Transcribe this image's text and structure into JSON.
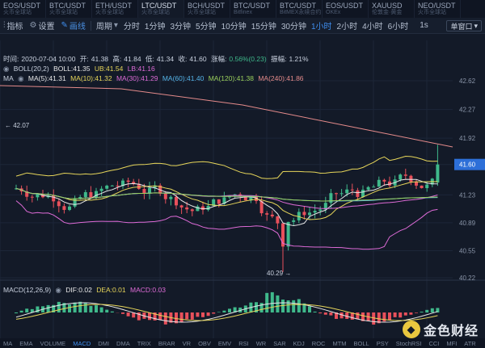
{
  "tabs": [
    {
      "symbol": "EOS/USDT",
      "exchange": "火币全球站",
      "active": false
    },
    {
      "symbol": "BTC/USDT",
      "exchange": "火币全球站",
      "active": false
    },
    {
      "symbol": "ETH/USDT",
      "exchange": "火币全球站",
      "active": false
    },
    {
      "symbol": "LTC/USDT",
      "exchange": "火币全球站",
      "active": true
    },
    {
      "symbol": "BCH/USDT",
      "exchange": "火币全球站",
      "active": false
    },
    {
      "symbol": "BTC/USDT",
      "exchange": "Bitfinex",
      "active": false
    },
    {
      "symbol": "BTC/USDT",
      "exchange": "BitMEX永续合约",
      "active": false
    },
    {
      "symbol": "EOS/USDT",
      "exchange": "OKEx",
      "active": false
    },
    {
      "symbol": "XAUUSD",
      "exchange": "伦敦金·黄金",
      "active": false
    },
    {
      "symbol": "NEO/USDT",
      "exchange": "火币全球站",
      "active": false
    }
  ],
  "toolbar": {
    "indicators_label": "指标",
    "settings_label": "设置",
    "draw_label": "画线",
    "period_label": "周期",
    "timeframes": [
      "分时",
      "1分钟",
      "3分钟",
      "5分钟",
      "10分钟",
      "15分钟",
      "30分钟",
      "1小时",
      "2小时",
      "4小时",
      "6小时"
    ],
    "active_timeframe": "1小时",
    "speed": "1s",
    "window_label": "单窗口"
  },
  "info": {
    "time_label": "时间:",
    "time": "2020-07-04 10:00",
    "open_label": "开:",
    "open": "41.38",
    "high_label": "高:",
    "high": "41.84",
    "low_label": "低:",
    "low": "41.34",
    "close_label": "收:",
    "close": "41.60",
    "change_label": "涨幅:",
    "change": "0.56%(0.23)",
    "amplitude_label": "振幅:",
    "amplitude": "1.21%"
  },
  "boll": {
    "name": "BOLL(20,2)",
    "mid": "BOLL:41.35",
    "ub": "UB:41.54",
    "lb": "LB:41.16"
  },
  "ma": {
    "name": "MA",
    "ma5": "MA(5):41.31",
    "ma10": "MA(10):41.32",
    "ma30": "MA(30):41.29",
    "ma60": "MA(60):41.40",
    "ma120": "MA(120):41.38",
    "ma240": "MA(240):41.86"
  },
  "macd": {
    "name": "MACD(12,26,9)",
    "dif": "DIF:0.02",
    "dea": "DEA:0.01",
    "macd": "MACD:0.03"
  },
  "price_axis": [
    "42.62",
    "42.27",
    "41.92",
    "41.60",
    "41.23",
    "40.89",
    "40.55",
    "40.22"
  ],
  "current_price": "41.60",
  "annotations": {
    "high_marker": "← 42.07",
    "low_marker": "40.29 →"
  },
  "bottom_indicators": [
    "MA",
    "EMA",
    "VOLUME",
    "MACD",
    "DMI",
    "DMA",
    "TRIX",
    "BRAR",
    "VR",
    "OBV",
    "EMV",
    "RSI",
    "WR",
    "SAR",
    "KDJ",
    "ROC",
    "MTM",
    "BOLL",
    "PSY",
    "StochRSI",
    "CCI",
    "MFI",
    "ATR"
  ],
  "active_bottom": "MACD",
  "logo_text": "金色财经",
  "colors": {
    "up": "#3fb98b",
    "down": "#e8505b",
    "accent": "#3f8ff0"
  }
}
